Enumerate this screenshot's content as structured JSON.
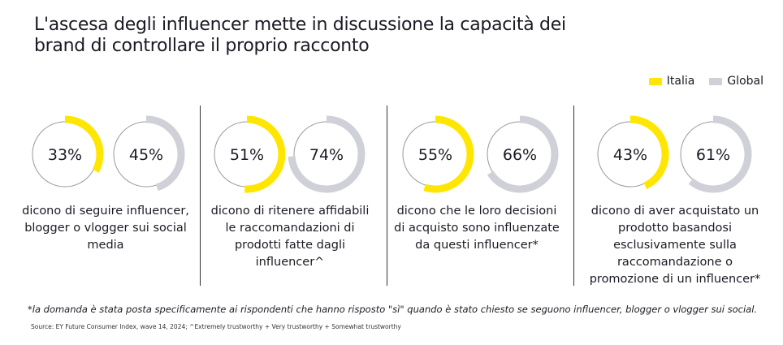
{
  "title": [
    "L'ascesa degli influencer mette in discussione la capacità dei",
    "brand di controllare il proprio racconto"
  ],
  "legend": [
    {
      "label": "Italia",
      "color": "#ffe600"
    },
    {
      "label": "Global",
      "color": "#d0d0d9"
    }
  ],
  "chart_data": {
    "type": "donut",
    "series": [
      "Italia",
      "Global"
    ],
    "groups": [
      {
        "italia": 33,
        "global": 45,
        "description": "dicono di seguire influencer, blogger o vlogger sui social media"
      },
      {
        "italia": 51,
        "global": 74,
        "description": "dicono di ritenere affidabili le raccomandazioni di prodotti fatte dagli influencer^"
      },
      {
        "italia": 55,
        "global": 66,
        "description": "dicono che le loro decisioni di acquisto sono influenzate da questi influencer*"
      },
      {
        "italia": 43,
        "global": 61,
        "description": "dicono di aver acquistato un prodotto basandosi esclusivamente sulla raccomandazione o promozione di un influencer*"
      }
    ]
  },
  "footnote": "*la domanda è stata posta specificamente ai rispondenti che hanno risposto \"sì\" quando è stato chiesto se seguono influencer, blogger o vlogger sui social.",
  "source": "Source: EY Future Consumer Index, wave 14, 2024; ^Extremely trustworthy + Very trustworthy + Somewhat trustworthy"
}
